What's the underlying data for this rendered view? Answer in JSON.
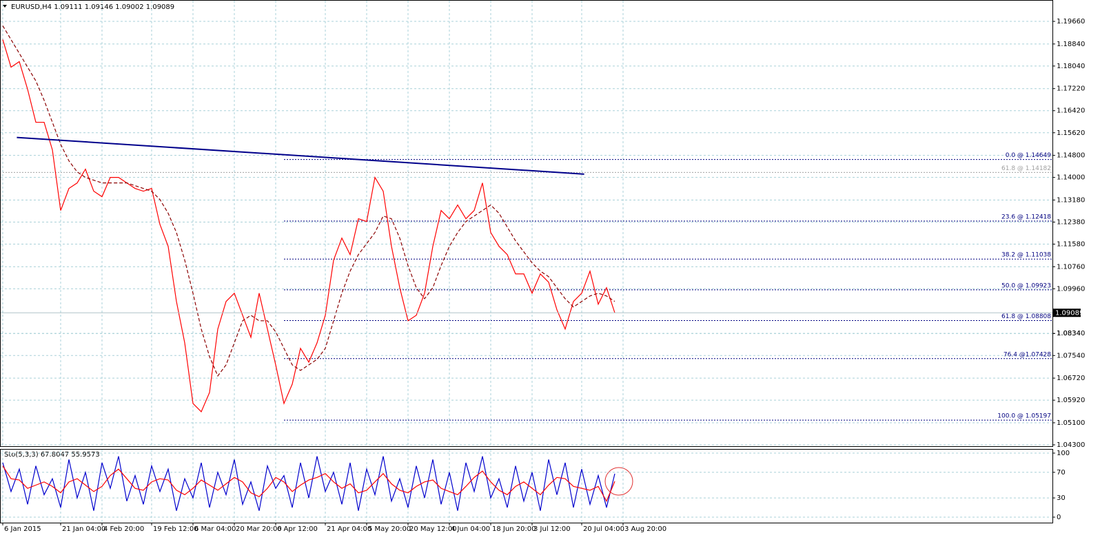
{
  "chart_data": [
    {
      "type": "line",
      "title": "EURUSD,H4  1.09111 1.09146 1.09002 1.09089",
      "categories": [
        "6 Jan 2015",
        null,
        null,
        null,
        null,
        null,
        null,
        "21 Jan 04:00",
        null,
        null,
        null,
        null,
        "4 Feb 20:00",
        null,
        null,
        null,
        null,
        null,
        "19 Feb 12:00",
        null,
        null,
        null,
        null,
        "6 Mar 04:00",
        null,
        null,
        null,
        null,
        "20 Mar 20:00",
        null,
        null,
        null,
        null,
        "6 Apr 12:00",
        null,
        null,
        null,
        null,
        null,
        "21 Apr 04:00",
        null,
        null,
        null,
        null,
        "5 May 20:00",
        null,
        null,
        null,
        null,
        "20 May 12:00",
        null,
        null,
        null,
        null,
        "4 Jun 04:00",
        null,
        null,
        null,
        null,
        "18 Jun 20:00",
        null,
        null,
        null,
        null,
        "3 Jul 12:00",
        null,
        null,
        null,
        null,
        null,
        "20 Jul 04:00",
        null,
        null,
        null,
        null,
        "3 Aug 20:00"
      ],
      "series": [
        {
          "color": "#ff0000",
          "values": [
            1.19,
            1.18,
            1.182,
            1.172,
            1.16,
            1.16,
            1.15,
            1.128,
            1.136,
            1.138,
            1.143,
            1.135,
            1.133,
            1.14,
            1.14,
            1.138,
            1.136,
            1.135,
            1.136,
            1.123,
            1.115,
            1.095,
            1.08,
            1.058,
            1.055,
            1.062,
            1.085,
            1.095,
            1.098,
            1.09,
            1.082,
            1.098,
            1.085,
            1.072,
            1.058,
            1.065,
            1.078,
            1.073,
            1.08,
            1.09,
            1.11,
            1.118,
            1.112,
            1.125,
            1.124,
            1.14,
            1.135,
            1.115,
            1.1,
            1.088,
            1.09,
            1.098,
            1.115,
            1.128,
            1.125,
            1.13,
            1.125,
            1.128,
            1.138,
            1.12,
            1.115,
            1.112,
            1.105,
            1.105,
            1.098,
            1.105,
            1.102,
            1.092,
            1.085,
            1.095,
            1.098,
            1.106,
            1.094,
            1.1,
            1.09089,
            null
          ]
        },
        {
          "color": "#8b0000",
          "dashed": true,
          "values": [
            1.195,
            1.19,
            1.185,
            1.18,
            1.175,
            1.168,
            1.16,
            1.152,
            1.146,
            1.142,
            1.14,
            1.139,
            1.138,
            1.138,
            1.138,
            1.138,
            1.137,
            1.136,
            1.135,
            1.132,
            1.127,
            1.12,
            1.11,
            1.098,
            1.085,
            1.075,
            1.068,
            1.072,
            1.08,
            1.088,
            1.09,
            1.088,
            1.088,
            1.084,
            1.078,
            1.072,
            1.07,
            1.072,
            1.074,
            1.078,
            1.088,
            1.098,
            1.106,
            1.112,
            1.116,
            1.12,
            1.126,
            1.125,
            1.118,
            1.108,
            1.1,
            1.096,
            1.1,
            1.108,
            1.115,
            1.12,
            1.124,
            1.126,
            1.128,
            1.13,
            1.127,
            1.122,
            1.117,
            1.113,
            1.109,
            1.106,
            1.104,
            1.1,
            1.096,
            1.093,
            1.095,
            1.097,
            1.098,
            1.097,
            1.095,
            null
          ]
        }
      ],
      "ylim": [
        1.0425,
        1.2041
      ],
      "yticks": [
        {
          "value": 1.1966,
          "label": "1.19660"
        },
        {
          "value": 1.1884,
          "label": "1.18840"
        },
        {
          "value": 1.1804,
          "label": "1.18040"
        },
        {
          "value": 1.1722,
          "label": "1.17220"
        },
        {
          "value": 1.1642,
          "label": "1.16420"
        },
        {
          "value": 1.1562,
          "label": "1.15620"
        },
        {
          "value": 1.148,
          "label": "1.14800"
        },
        {
          "value": 1.14,
          "label": "1.14000"
        },
        {
          "value": 1.1318,
          "label": "1.13180"
        },
        {
          "value": 1.1238,
          "label": "1.12380"
        },
        {
          "value": 1.1158,
          "label": "1.11580"
        },
        {
          "value": 1.1076,
          "label": "1.10760"
        },
        {
          "value": 1.0996,
          "label": "1.09960"
        },
        1.0834,
        {
          "value": 1.0834,
          "label": "1.08340"
        },
        {
          "value": 1.0754,
          "label": "1.07540"
        },
        {
          "value": 1.0672,
          "label": "1.06720"
        },
        {
          "value": 1.0592,
          "label": "1.05920"
        },
        {
          "value": 1.051,
          "label": "1.05100"
        },
        {
          "value": 1.043,
          "label": "1.04300"
        }
      ],
      "grid": true,
      "trendline": {
        "color": "#00008b",
        "x": [
          1.7,
          70.3
        ],
        "values": [
          1.1545,
          1.1412
        ]
      },
      "annotations": [
        {
          "label": "0.0 @ 1.14649",
          "value": 1.14649,
          "start": 34,
          "color": "#000080"
        },
        {
          "label": "61.8 @ 1.14182",
          "value": 1.14182,
          "start": 0,
          "color": "#a0a0a0"
        },
        {
          "label": "23.6 @ 1.12418",
          "value": 1.12418,
          "start": 34,
          "color": "#000080"
        },
        {
          "label": "38.2 @ 1.11038",
          "value": 1.11038,
          "start": 34,
          "color": "#000080"
        },
        {
          "label": "50.0 @ 1.09923",
          "value": 1.09923,
          "start": 34,
          "color": "#000080"
        },
        {
          "label": "61.8 @ 1.08808",
          "value": 1.08808,
          "start": 34,
          "color": "#000080"
        },
        {
          "label": "76.4 @1.07428",
          "value": 1.07428,
          "start": 34,
          "color": "#000080"
        },
        {
          "label": "100.0 @ 1.05197",
          "value": 1.05197,
          "start": 34,
          "color": "#000080"
        }
      ]
    },
    {
      "type": "line",
      "title": "Sto(5,3,3) 67.8047 55.9573",
      "series": [
        {
          "color": "#0000cd",
          "values": [
            85,
            40,
            75,
            20,
            80,
            35,
            60,
            15,
            90,
            30,
            70,
            10,
            85,
            45,
            95,
            25,
            65,
            20,
            80,
            40,
            75,
            10,
            60,
            30,
            85,
            15,
            70,
            35,
            90,
            20,
            55,
            10,
            80,
            45,
            65,
            15,
            85,
            30,
            95,
            40,
            70,
            20,
            85,
            10,
            75,
            35,
            95,
            25,
            60,
            15,
            80,
            30,
            90,
            20,
            70,
            10,
            85,
            40,
            95,
            30,
            60,
            15,
            80,
            25,
            70,
            10,
            90,
            35,
            85,
            15,
            75,
            20,
            65,
            15,
            67.8047,
            null
          ]
        },
        {
          "color": "#ff0000",
          "values": [
            80,
            60,
            58,
            45,
            50,
            55,
            48,
            38,
            55,
            60,
            50,
            40,
            48,
            65,
            75,
            60,
            45,
            42,
            55,
            60,
            58,
            42,
            35,
            45,
            58,
            50,
            42,
            52,
            62,
            55,
            38,
            32,
            45,
            62,
            55,
            40,
            50,
            58,
            62,
            68,
            55,
            45,
            52,
            38,
            42,
            55,
            68,
            52,
            42,
            38,
            48,
            55,
            58,
            45,
            40,
            35,
            48,
            62,
            72,
            55,
            42,
            35,
            48,
            55,
            45,
            35,
            50,
            62,
            60,
            48,
            45,
            42,
            48,
            25,
            55.9573,
            null
          ]
        }
      ],
      "ylim": [
        0,
        100
      ],
      "yticks": [
        0,
        30,
        70,
        100
      ],
      "grid": true
    }
  ]
}
